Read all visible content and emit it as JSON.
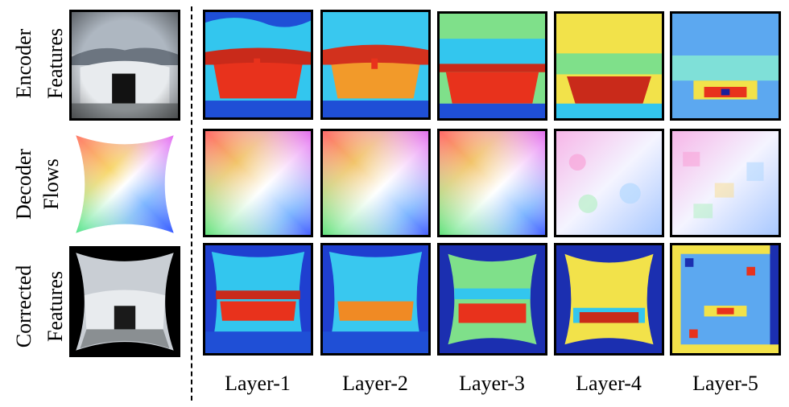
{
  "figure": {
    "rows": [
      {
        "label_line1": "Encoder",
        "label_line2": "Features"
      },
      {
        "label_line1": "Decoder",
        "label_line2": "Flows"
      },
      {
        "label_line1": "Corrected",
        "label_line2": "Features"
      }
    ],
    "columns": [
      "Layer-1",
      "Layer-2",
      "Layer-3",
      "Layer-4",
      "Layer-5"
    ],
    "colors": {
      "heat_blue": "#1f4fd6",
      "heat_cyan": "#2fc8f0",
      "heat_red": "#e8321c",
      "heat_yellow": "#f2e24a"
    }
  }
}
